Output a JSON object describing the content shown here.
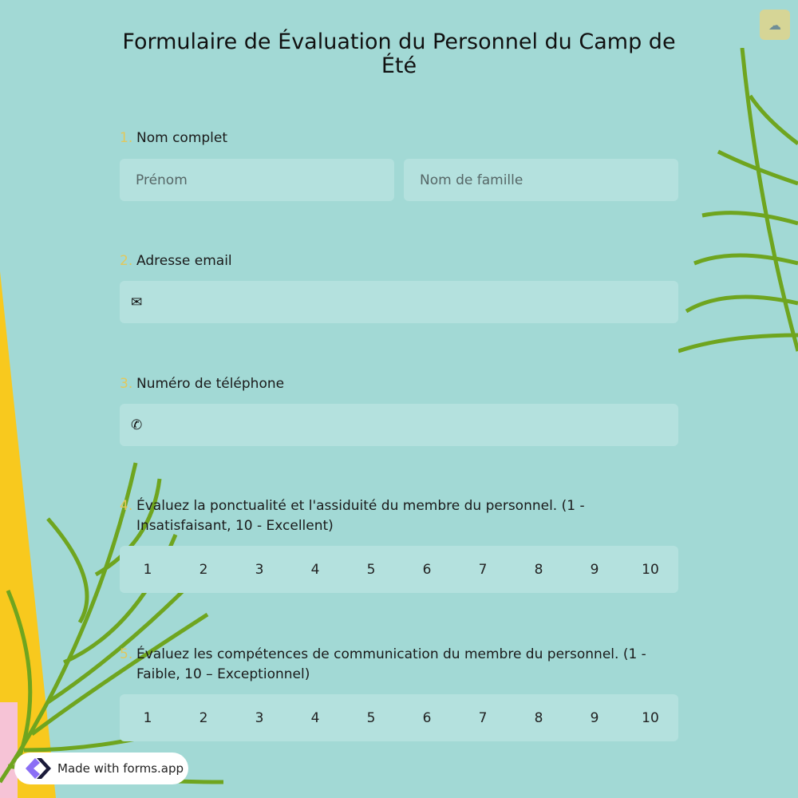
{
  "form": {
    "title": "Formulaire de Évaluation du Personnel du Camp de Été"
  },
  "toolbar": {
    "save_icon": "cloud-upload-icon"
  },
  "questions": [
    {
      "number": "1.",
      "label": "Nom complet",
      "first_placeholder": "Prénom",
      "last_placeholder": "Nom de famille"
    },
    {
      "number": "2.",
      "label": "Adresse email",
      "icon": "envelope-icon"
    },
    {
      "number": "3.",
      "label": "Numéro de téléphone",
      "icon": "phone-icon"
    },
    {
      "number": "4.",
      "label": "Évaluez la ponctualité et l'assiduité du membre du personnel. (1 - Insatisfaisant, 10 - Excellent)",
      "options": [
        "1",
        "2",
        "3",
        "4",
        "5",
        "6",
        "7",
        "8",
        "9",
        "10"
      ]
    },
    {
      "number": "5.",
      "label": "Évaluez les compétences de communication du membre du personnel. (1 - Faible, 10 – Exceptionnel)",
      "options": [
        "1",
        "2",
        "3",
        "4",
        "5",
        "6",
        "7",
        "8",
        "9",
        "10"
      ]
    }
  ],
  "badge": {
    "label": "Made with forms.app"
  },
  "colors": {
    "background": "#a2d9d5",
    "field": "#b4e1de",
    "number": "#e2c85c",
    "yellow": "#f8c91e"
  }
}
